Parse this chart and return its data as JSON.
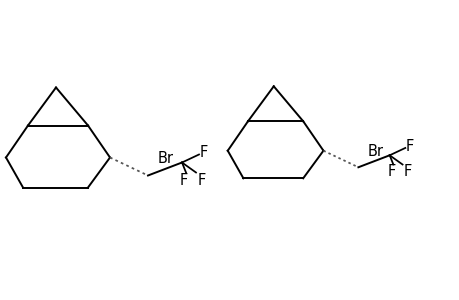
{
  "bg_color": "#ffffff",
  "line_color": "#000000",
  "line_width": 1.4,
  "font_size": 10.5,
  "fig_w": 4.6,
  "fig_h": 3.0,
  "dpi": 100,
  "mol1_ox": 0.08,
  "mol1_oy": 0.12,
  "mol2_ox": 2.35,
  "mol2_oy": 0.2,
  "scale": 1.0,
  "xlim": [
    -0.1,
    4.5
  ],
  "ylim": [
    -0.3,
    1.35
  ]
}
